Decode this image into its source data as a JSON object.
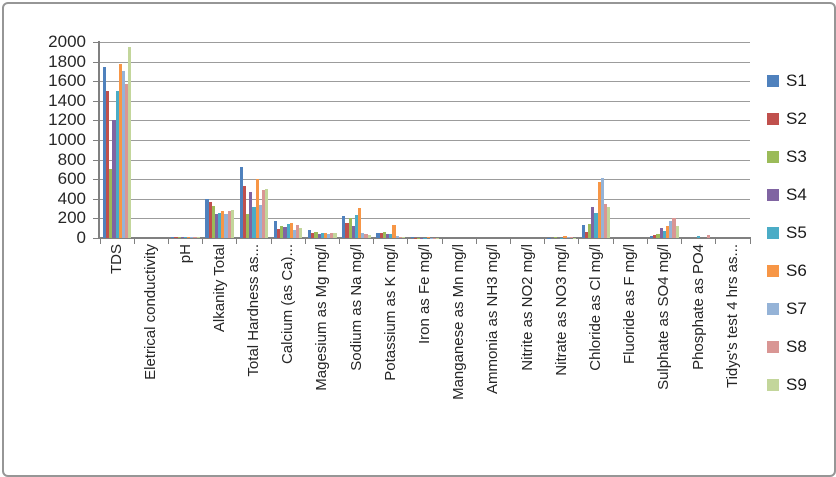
{
  "chart_data": {
    "type": "bar",
    "title": "",
    "xlabel": "",
    "ylabel": "",
    "ylim": [
      0,
      2000
    ],
    "grid": true,
    "legend_position": "right",
    "yticks": [
      "2000",
      "1800",
      "1600",
      "1400",
      "1200",
      "1000",
      "800",
      "600",
      "400",
      "200",
      "0"
    ],
    "categories": [
      "TDS",
      "Eletrical conductivity",
      "pH",
      "Alkanity Total",
      "Total Hardness as...",
      "Calcium  (as Ca)...",
      "Magesium as Mg mg/l",
      "Sodium as Na mg/l",
      "Potassium as K mg/l",
      "Iron as Fe mg/l",
      "Manganese as Mn mg/l",
      "Ammonia as NH3 mg/l",
      "Nitrite as NO2 mg/l",
      "Nitrate as NO3 mg/l",
      "Chloride as Cl mg/l",
      "Fluoride as F mg/l",
      "Sulphate as SO4 mg/l",
      "Phosphate as PO4",
      "Tidys's test 4 hrs as..."
    ],
    "series": [
      {
        "name": "S1",
        "color": "#4F81BD",
        "values": [
          1750,
          0,
          8,
          400,
          720,
          170,
          80,
          230,
          50,
          10,
          0,
          0,
          0,
          5,
          130,
          0,
          20,
          0,
          0
        ]
      },
      {
        "name": "S2",
        "color": "#C0504D",
        "values": [
          1500,
          0,
          8,
          370,
          530,
          95,
          55,
          150,
          55,
          5,
          0,
          0,
          0,
          0,
          60,
          0,
          30,
          0,
          0
        ]
      },
      {
        "name": "S3",
        "color": "#9BBB59",
        "values": [
          700,
          0,
          8,
          330,
          250,
          120,
          65,
          200,
          60,
          5,
          0,
          0,
          0,
          10,
          140,
          0,
          40,
          0,
          0
        ]
      },
      {
        "name": "S4",
        "color": "#8064A2",
        "values": [
          1200,
          0,
          8,
          250,
          465,
          110,
          45,
          120,
          40,
          5,
          0,
          0,
          0,
          0,
          320,
          0,
          105,
          0,
          0
        ]
      },
      {
        "name": "S5",
        "color": "#4BACC6",
        "values": [
          1500,
          0,
          8,
          260,
          320,
          140,
          50,
          240,
          45,
          5,
          0,
          0,
          0,
          5,
          260,
          0,
          70,
          20,
          0
        ]
      },
      {
        "name": "S6",
        "color": "#F79646",
        "values": [
          1780,
          0,
          8,
          280,
          600,
          150,
          55,
          310,
          130,
          10,
          0,
          0,
          0,
          25,
          575,
          0,
          125,
          0,
          0
        ]
      },
      {
        "name": "S7",
        "color": "#95B3D7",
        "values": [
          1700,
          0,
          8,
          245,
          340,
          85,
          40,
          50,
          20,
          5,
          0,
          0,
          0,
          10,
          615,
          0,
          170,
          0,
          0
        ]
      },
      {
        "name": "S8",
        "color": "#D99694",
        "values": [
          1570,
          0,
          8,
          275,
          490,
          135,
          50,
          40,
          15,
          5,
          0,
          0,
          0,
          8,
          345,
          0,
          200,
          30,
          0
        ]
      },
      {
        "name": "S9",
        "color": "#C3D69B",
        "values": [
          1950,
          0,
          8,
          285,
          505,
          105,
          55,
          35,
          10,
          5,
          0,
          0,
          0,
          5,
          320,
          0,
          125,
          0,
          0
        ]
      }
    ]
  }
}
